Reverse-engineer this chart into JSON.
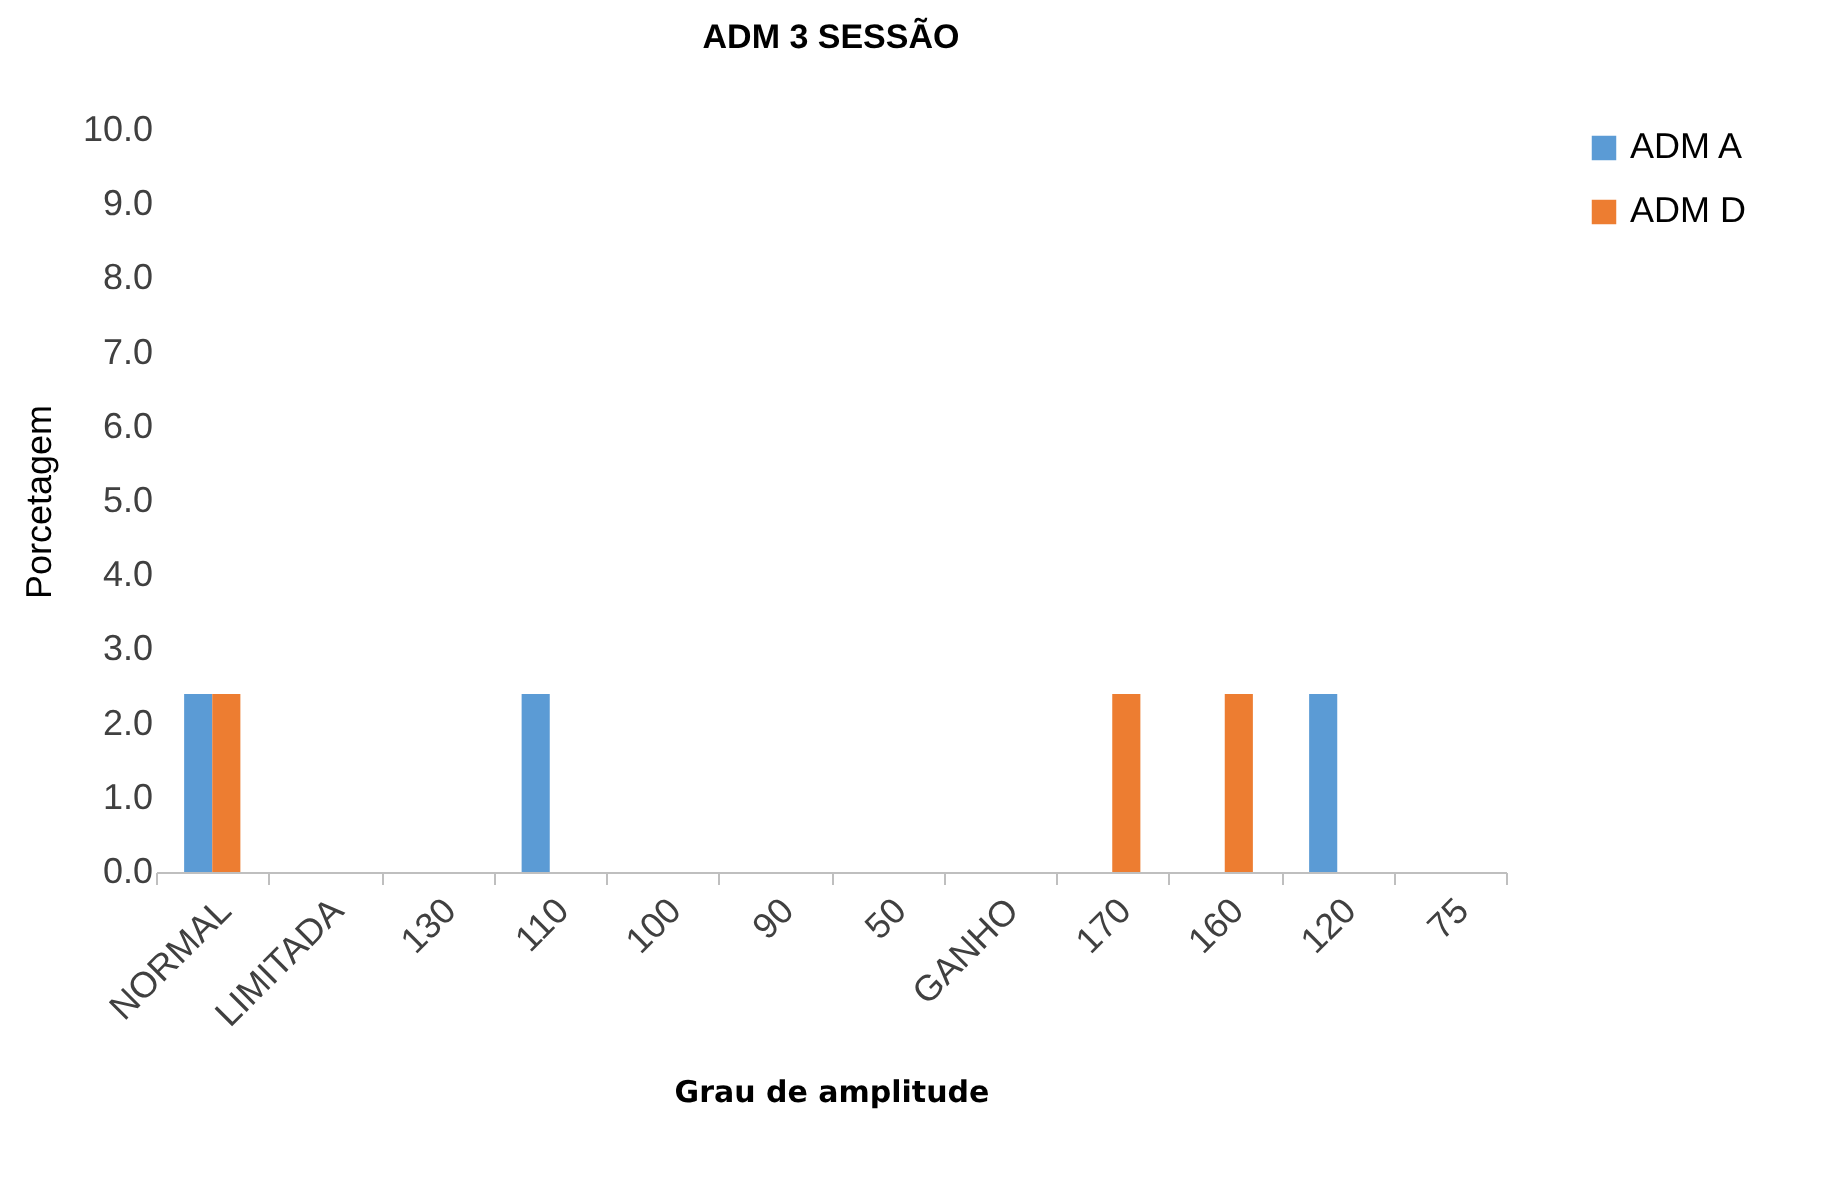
{
  "chart_data": {
    "type": "bar",
    "title": "ADM 3 SESSÃO",
    "xlabel": "Grau de amplitude",
    "ylabel": "Porcetagem",
    "categories": [
      "NORMAL",
      "LIMITADA",
      "130",
      "110",
      "100",
      "90",
      "50",
      "GANHO",
      "170",
      "160",
      "120",
      "75"
    ],
    "series": [
      {
        "name": "ADM A",
        "color": "#5b9bd5",
        "values": [
          2.4,
          0,
          0,
          2.4,
          0,
          0,
          0,
          0,
          0,
          0,
          2.4,
          0
        ]
      },
      {
        "name": "ADM D",
        "color": "#ed7d31",
        "values": [
          2.4,
          0,
          0,
          0,
          0,
          0,
          0,
          0,
          2.4,
          2.4,
          0,
          0
        ]
      }
    ],
    "ylim": [
      0,
      10
    ],
    "yticks": [
      {
        "value": 0,
        "label": "0.0"
      },
      {
        "value": 1,
        "label": "1.0"
      },
      {
        "value": 2,
        "label": "2.0"
      },
      {
        "value": 3,
        "label": "3.0"
      },
      {
        "value": 4,
        "label": "4.0"
      },
      {
        "value": 5,
        "label": "5.0"
      },
      {
        "value": 6,
        "label": "6.0"
      },
      {
        "value": 7,
        "label": "7.0"
      },
      {
        "value": 8,
        "label": "8.0"
      },
      {
        "value": 9,
        "label": "9.0"
      },
      {
        "value": 10,
        "label": "10.0"
      }
    ],
    "grid": false,
    "legend": "right"
  }
}
